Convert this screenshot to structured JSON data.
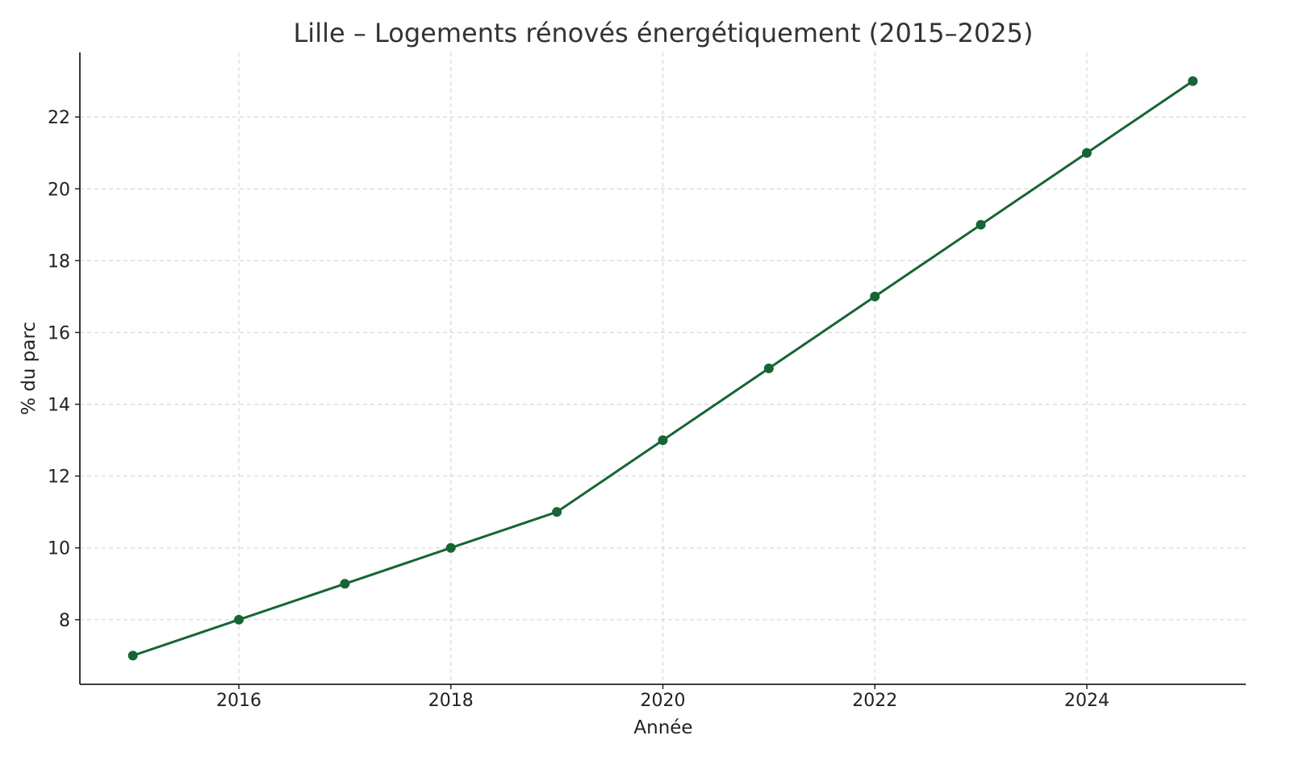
{
  "chart_data": {
    "type": "line",
    "title": "Lille – Logements rénovés énergétiquement (2015–2025)",
    "xlabel": "Année",
    "ylabel": "% du parc",
    "x": [
      2015,
      2016,
      2017,
      2018,
      2019,
      2020,
      2021,
      2022,
      2023,
      2024,
      2025
    ],
    "series": [
      {
        "values": [
          7,
          8,
          9,
          10,
          11,
          13,
          15,
          17,
          19,
          21,
          23
        ],
        "color": "#166534",
        "marker": "circle"
      }
    ],
    "xlim": [
      2014.5,
      2025.5
    ],
    "ylim": [
      6.2,
      23.8
    ],
    "xticks": [
      2016,
      2018,
      2020,
      2022,
      2024
    ],
    "yticks": [
      8,
      10,
      12,
      14,
      16,
      18,
      20,
      22
    ],
    "grid": true,
    "grid_style": "dashed"
  }
}
